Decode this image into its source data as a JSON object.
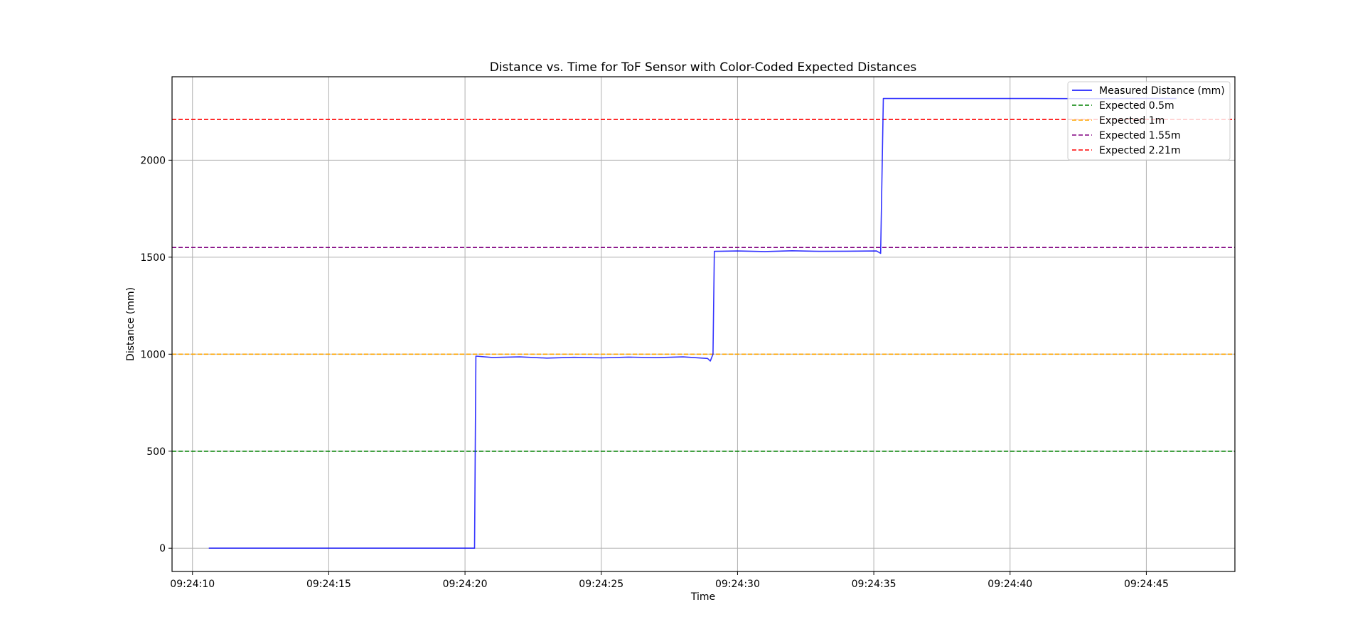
{
  "chart_data": {
    "type": "line",
    "title": "Distance vs. Time for ToF Sensor with Color-Coded Expected Distances",
    "xlabel": "Time",
    "ylabel": "Distance (mm)",
    "xlim": [
      "09:24:09.25",
      "09:24:48.25"
    ],
    "ylim": [
      -120,
      2430
    ],
    "x_ticks": [
      "09:24:10",
      "09:24:15",
      "09:24:20",
      "09:24:25",
      "09:24:30",
      "09:24:35",
      "09:24:40",
      "09:24:45"
    ],
    "y_ticks": [
      0,
      500,
      1000,
      1500,
      2000
    ],
    "grid": true,
    "legend": "top-right",
    "series": [
      {
        "name": "Measured Distance (mm)",
        "color": "#0000ff",
        "style": "solid",
        "points": [
          [
            "09:24:10.6",
            0
          ],
          [
            "09:24:20.35",
            0
          ],
          [
            "09:24:20.4",
            990
          ],
          [
            "09:24:21",
            983
          ],
          [
            "09:24:22",
            986
          ],
          [
            "09:24:23",
            980
          ],
          [
            "09:24:24",
            984
          ],
          [
            "09:24:25",
            981
          ],
          [
            "09:24:26",
            985
          ],
          [
            "09:24:27",
            982
          ],
          [
            "09:24:28",
            986
          ],
          [
            "09:24:28.9",
            978
          ],
          [
            "09:24:29.0",
            965
          ],
          [
            "09:24:29.1",
            1000
          ],
          [
            "09:24:29.15",
            1530
          ],
          [
            "09:24:30",
            1532
          ],
          [
            "09:24:31",
            1529
          ],
          [
            "09:24:32",
            1533
          ],
          [
            "09:24:33",
            1530
          ],
          [
            "09:24:34",
            1531
          ],
          [
            "09:24:35.1",
            1532
          ],
          [
            "09:24:35.25",
            1520
          ],
          [
            "09:24:35.35",
            2318
          ],
          [
            "09:24:37",
            2318
          ],
          [
            "09:24:39",
            2318
          ],
          [
            "09:24:41",
            2318
          ],
          [
            "09:24:43",
            2317
          ],
          [
            "09:24:45",
            2318
          ],
          [
            "09:24:46.1",
            2318
          ]
        ]
      },
      {
        "name": "Expected 0.5m",
        "color": "#008000",
        "style": "dashed",
        "y": 500
      },
      {
        "name": "Expected 1m",
        "color": "#ffa500",
        "style": "dashed",
        "y": 1000
      },
      {
        "name": "Expected 1.55m",
        "color": "#800080",
        "style": "dashed",
        "y": 1550
      },
      {
        "name": "Expected 2.21m",
        "color": "#ff0000",
        "style": "dashed",
        "y": 2210
      }
    ]
  }
}
